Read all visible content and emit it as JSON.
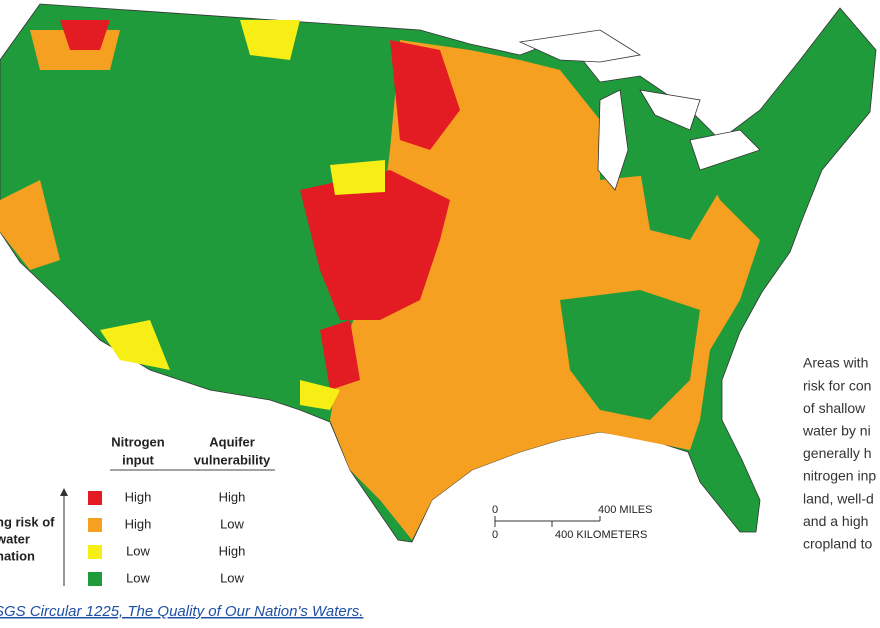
{
  "legend": {
    "nitrogen_header": [
      "Nitrogen",
      "input"
    ],
    "aquifer_header": [
      "Aquifer",
      "vulnerability"
    ],
    "axis_label": [
      "ng risk of",
      "water",
      "nation"
    ],
    "rows": [
      {
        "nitrogen": "High",
        "aquifer": "High",
        "color": "#e31b23"
      },
      {
        "nitrogen": "High",
        "aquifer": "Low",
        "color": "#f5a020"
      },
      {
        "nitrogen": "Low",
        "aquifer": "High",
        "color": "#f6ee14"
      },
      {
        "nitrogen": "Low",
        "aquifer": "Low",
        "color": "#1f9b3c"
      }
    ]
  },
  "scale": {
    "miles_zero": "0",
    "miles_label": "400 MILES",
    "km_zero": "0",
    "km_label": "400 KILOMETERS"
  },
  "side_text": [
    "Areas with",
    "risk for con",
    "of shallow",
    "water by ni",
    "generally h",
    "nitrogen inp",
    "land, well-d",
    "and a high",
    "cropland to"
  ],
  "caption": "SGS Circular 1225, The Quality of Our Nation's Waters."
}
